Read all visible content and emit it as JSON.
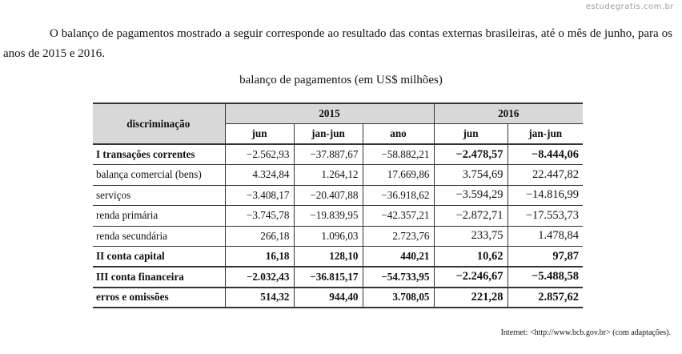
{
  "watermark": "estudegratis.com.br",
  "intro": "O balanço de pagamentos mostrado a seguir corresponde ao resultado das contas externas brasileiras, até o mês de junho, para os anos de 2015 e 2016.",
  "caption": "balanço de pagamentos (em US$ milhões)",
  "table": {
    "corner": "discriminação",
    "year_2015": "2015",
    "year_2016": "2016",
    "sub": [
      "jun",
      "jan-jun",
      "ano",
      "jun",
      "jan-jun"
    ],
    "rows": [
      {
        "label": "I transações correntes",
        "cells": [
          "−2.562,93",
          "−37.887,67",
          "−58.882,21",
          "−2.478,57",
          "−8.444,06"
        ]
      },
      {
        "label": "balança comercial (bens)",
        "cells": [
          "4.324,84",
          "1.264,12",
          "17.669,86",
          "3.754,69",
          "22.447,82"
        ]
      },
      {
        "label": "serviços",
        "cells": [
          "−3.408,17",
          "−20.407,88",
          "−36.918,62",
          "−3.594,29",
          "−14.816,99"
        ]
      },
      {
        "label": "renda primária",
        "cells": [
          "−3.745,78",
          "−19.839,95",
          "−42.357,21",
          "−2.872,71",
          "−17.553,73"
        ]
      },
      {
        "label": "renda secundária",
        "cells": [
          "266,18",
          "1.096,03",
          "2.723,76",
          "233,75",
          "1.478,84"
        ]
      },
      {
        "label": "II conta capital",
        "cells": [
          "16,18",
          "128,10",
          "440,21",
          "10,62",
          "97,87"
        ]
      },
      {
        "label": "III conta financeira",
        "cells": [
          "−2.032,43",
          "−36.815,17",
          "−54.733,95",
          "−2.246,67",
          "−5.488,58"
        ]
      },
      {
        "label": "erros e omissões",
        "cells": [
          "514,32",
          "944,40",
          "3.708,05",
          "221,28",
          "2.857,62"
        ]
      }
    ]
  },
  "source": "Internet: <http://www.bcb.gov.br> (com adaptações)."
}
